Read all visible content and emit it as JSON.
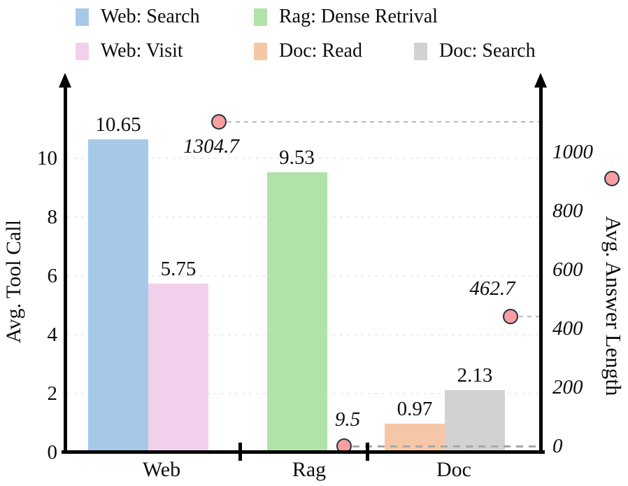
{
  "chart_data": {
    "type": "bar",
    "title": "",
    "categories": [
      "Web",
      "Rag",
      "Doc"
    ],
    "series": [
      {
        "name": "Web: Search",
        "category": "Web",
        "value": 10.65,
        "color": "#a6c9e8"
      },
      {
        "name": "Web: Visit",
        "category": "Web",
        "value": 5.75,
        "color": "#f2d0ec"
      },
      {
        "name": "Rag: Dense Retrival",
        "category": "Rag",
        "value": 9.53,
        "color": "#b0e3a8"
      },
      {
        "name": "Doc: Read",
        "category": "Doc",
        "value": 0.97,
        "color": "#f6c7a6"
      },
      {
        "name": "Doc: Search",
        "category": "Doc",
        "value": 2.13,
        "color": "#d2d2d2"
      }
    ],
    "scatter_series": {
      "name": "Avg. Answer Length",
      "marker_fill": "#fa9e9e",
      "marker_border": "#1f3247",
      "points": [
        {
          "category": "Web",
          "value": 1304.7,
          "label": "1304.7"
        },
        {
          "category": "Rag",
          "value": 9.5,
          "label": "9.5"
        },
        {
          "category": "Doc",
          "value": 462.7,
          "label": "462.7"
        }
      ]
    },
    "left_axis": {
      "label": "Avg. Tool Call",
      "ticks": [
        "0",
        "2",
        "4",
        "6",
        "8",
        "10"
      ],
      "range": [
        0,
        12.5
      ]
    },
    "right_axis": {
      "label": "Avg. Answer Length",
      "ticks": [
        "0",
        "200",
        "400",
        "600",
        "800",
        "1000"
      ],
      "range": [
        0,
        1250
      ]
    },
    "grid": "faint dashed horizontal gridlines at shared tick levels",
    "legend_position": "top",
    "legend_rows": [
      [
        {
          "label": "Web: Search",
          "color": "#a6c9e8"
        },
        {
          "label": "Rag: Dense Retrival",
          "color": "#b0e3a8"
        }
      ],
      [
        {
          "label": "Web: Visit",
          "color": "#f2d0ec"
        },
        {
          "label": "Doc: Read",
          "color": "#f6c7a6"
        },
        {
          "label": "Doc: Search",
          "color": "#d2d2d2"
        }
      ]
    ]
  }
}
